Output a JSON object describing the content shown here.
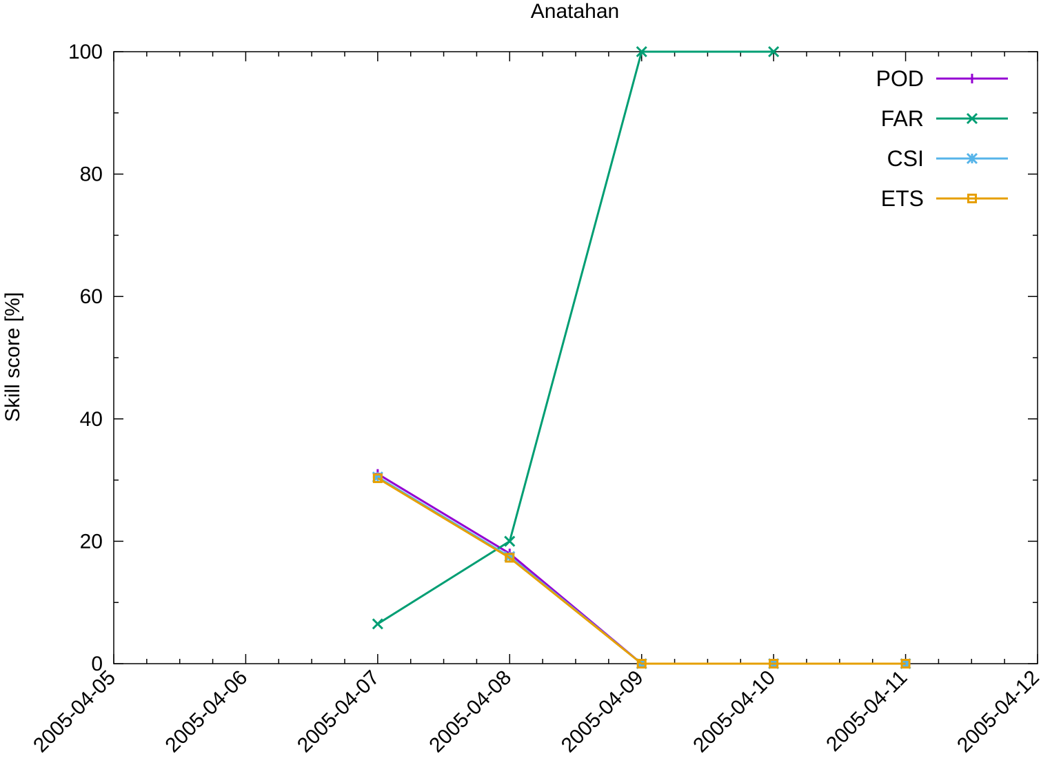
{
  "chart_data": {
    "type": "line",
    "title": "Anatahan",
    "xlabel": "",
    "ylabel": "Skill score [%]",
    "x_ticks": [
      "2005-04-05",
      "2005-04-06",
      "2005-04-07",
      "2005-04-08",
      "2005-04-09",
      "2005-04-10",
      "2005-04-11",
      "2005-04-12"
    ],
    "y_ticks": [
      "0",
      "20",
      "40",
      "60",
      "80",
      "100"
    ],
    "xlim": [
      "2005-04-05",
      "2005-04-12"
    ],
    "ylim": [
      0,
      100
    ],
    "grid": false,
    "legend_position": "top-right",
    "series": [
      {
        "name": "POD",
        "color": "#9400d3",
        "marker": "plus",
        "points": [
          [
            "2005-04-07",
            31
          ],
          [
            "2005-04-08",
            18
          ],
          [
            "2005-04-09",
            0
          ],
          [
            "2005-04-10",
            0
          ],
          [
            "2005-04-11",
            0
          ]
        ]
      },
      {
        "name": "FAR",
        "color": "#009e73",
        "marker": "cross",
        "points": [
          [
            "2005-04-07",
            6.5
          ],
          [
            "2005-04-08",
            20
          ],
          [
            "2005-04-09",
            100
          ],
          [
            "2005-04-10",
            100
          ]
        ]
      },
      {
        "name": "CSI",
        "color": "#56b4e9",
        "marker": "star",
        "points": [
          [
            "2005-04-07",
            30.5
          ],
          [
            "2005-04-08",
            17.5
          ],
          [
            "2005-04-09",
            0
          ],
          [
            "2005-04-10",
            0
          ],
          [
            "2005-04-11",
            0
          ]
        ]
      },
      {
        "name": "ETS",
        "color": "#e69f00",
        "marker": "square",
        "points": [
          [
            "2005-04-07",
            30.3
          ],
          [
            "2005-04-08",
            17.3
          ],
          [
            "2005-04-09",
            0
          ],
          [
            "2005-04-10",
            0
          ],
          [
            "2005-04-11",
            0
          ]
        ]
      }
    ]
  }
}
